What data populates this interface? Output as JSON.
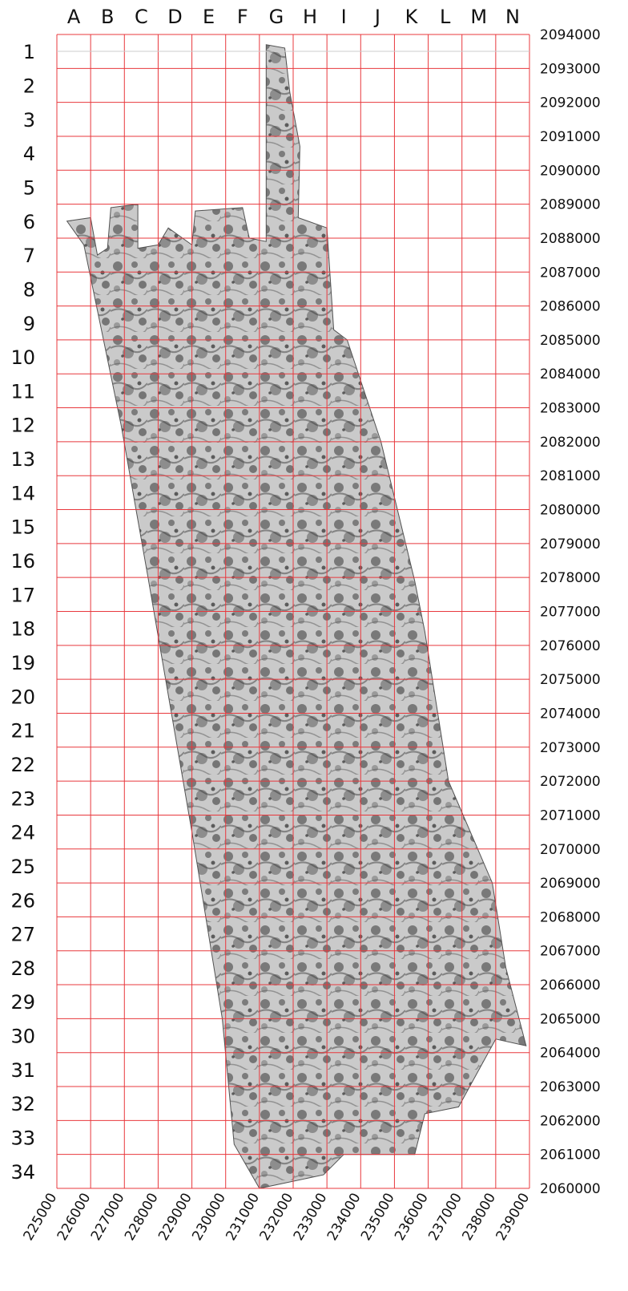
{
  "grid": {
    "column_letters": [
      "A",
      "B",
      "C",
      "D",
      "E",
      "F",
      "G",
      "H",
      "I",
      "J",
      "K",
      "L",
      "M",
      "N"
    ],
    "row_numbers": [
      "1",
      "2",
      "3",
      "4",
      "5",
      "6",
      "7",
      "8",
      "9",
      "10",
      "11",
      "12",
      "13",
      "14",
      "15",
      "16",
      "17",
      "18",
      "19",
      "20",
      "21",
      "22",
      "23",
      "24",
      "25",
      "26",
      "27",
      "28",
      "29",
      "30",
      "31",
      "32",
      "33",
      "34"
    ],
    "northing_labels": [
      "2094000",
      "2093000",
      "2092000",
      "2091000",
      "2090000",
      "2089000",
      "2088000",
      "2087000",
      "2086000",
      "2085000",
      "2084000",
      "2083000",
      "2082000",
      "2081000",
      "2080000",
      "2079000",
      "2078000",
      "2077000",
      "2076000",
      "2075000",
      "2074000",
      "2073000",
      "2072000",
      "2071000",
      "2070000",
      "2069000",
      "2068000",
      "2067000",
      "2066000",
      "2065000",
      "2064000",
      "2063000",
      "2062000",
      "2061000",
      "2060000"
    ],
    "easting_labels": [
      "225000",
      "226000",
      "227000",
      "228000",
      "229000",
      "230000",
      "231000",
      "232000",
      "233000",
      "234000",
      "235000",
      "236000",
      "237000",
      "238000",
      "239000"
    ],
    "easting_range": [
      225000,
      239000
    ],
    "northing_range": [
      2060000,
      2094000
    ],
    "grid_color": "#e8383d",
    "cell_size_m": 1000
  },
  "survey_area": {
    "description": "Greyscale relief / hillshade survey coverage (LiDAR-style)",
    "shading_colors": [
      "#1a1a1a",
      "#9a9a9a",
      "#e6e6e6"
    ],
    "outline_polygon_coords": [
      [
        231200,
        2093700
      ],
      [
        231750,
        2093600
      ],
      [
        231900,
        2092300
      ],
      [
        232200,
        2090700
      ],
      [
        232150,
        2088600
      ],
      [
        233000,
        2088300
      ],
      [
        233200,
        2085300
      ],
      [
        233600,
        2085000
      ],
      [
        234600,
        2082000
      ],
      [
        235600,
        2077900
      ],
      [
        235900,
        2076400
      ],
      [
        236600,
        2072000
      ],
      [
        237900,
        2069000
      ],
      [
        238300,
        2066500
      ],
      [
        238900,
        2064200
      ],
      [
        238000,
        2064400
      ],
      [
        236900,
        2062400
      ],
      [
        235900,
        2062200
      ],
      [
        235600,
        2061000
      ],
      [
        233500,
        2061000
      ],
      [
        232900,
        2060400
      ],
      [
        231000,
        2060000
      ],
      [
        230250,
        2061300
      ],
      [
        229900,
        2065000
      ],
      [
        229000,
        2070500
      ],
      [
        227700,
        2078000
      ],
      [
        226900,
        2082500
      ],
      [
        225800,
        2087800
      ],
      [
        225300,
        2088500
      ],
      [
        226000,
        2088600
      ],
      [
        226200,
        2087500
      ],
      [
        226500,
        2087700
      ],
      [
        226600,
        2088900
      ],
      [
        227400,
        2089000
      ],
      [
        227400,
        2087700
      ],
      [
        228000,
        2087800
      ],
      [
        228300,
        2088300
      ],
      [
        229000,
        2087800
      ],
      [
        229100,
        2088800
      ],
      [
        230500,
        2088900
      ],
      [
        230700,
        2088000
      ],
      [
        231200,
        2087900
      ],
      [
        231200,
        2092000
      ]
    ]
  }
}
